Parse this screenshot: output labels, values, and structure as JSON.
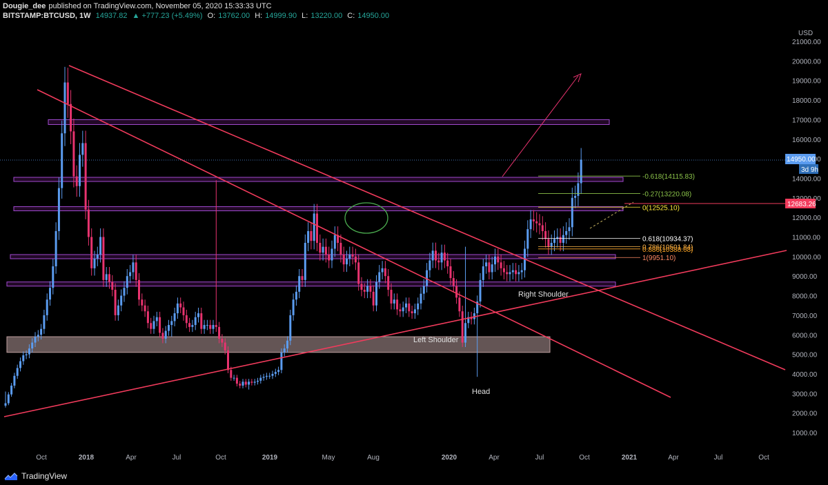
{
  "header": {
    "author": "Dougie_dee",
    "published": "published on TradingView.com, November 05, 2020 15:33:33 UTC",
    "symbol": "BITSTAMP:BTCUSD, 1W",
    "last": "14937.82",
    "change": "▲ +777.23 (+5.49%)",
    "o_label": "O:",
    "o_value": "13762.00",
    "h_label": "H:",
    "h_value": "14999.90",
    "l_label": "L:",
    "l_value": "13220.00",
    "c_label": "C:",
    "c_value": "14950.00"
  },
  "footer": {
    "brand": "TradingView"
  },
  "colors": {
    "bull": "#5b9cf0",
    "bear": "#e8336f",
    "trendline": "#f23b5c",
    "zone": "#9c27b0"
  },
  "chart_data": {
    "type": "candlestick",
    "currency": "USD",
    "y_ticks": [
      1000,
      2000,
      3000,
      4000,
      5000,
      6000,
      7000,
      8000,
      9000,
      10000,
      11000,
      12000,
      13000,
      14000,
      15000,
      16000,
      17000,
      18000,
      19000,
      20000,
      21000
    ],
    "x_ticks": [
      "Oct",
      "2018",
      "Apr",
      "Jul",
      "Oct",
      "2019",
      "May",
      "Aug",
      "2020",
      "Apr",
      "Jul",
      "Oct",
      "2021",
      "Apr",
      "Jul",
      "Oct"
    ],
    "price_label": "14950.00",
    "countdown_label": "3d 9h",
    "level_label": "12683.26",
    "fib_levels": [
      {
        "label": "-0.618(14115.83)",
        "value": 14115.83
      },
      {
        "label": "-0.27(13220.08)",
        "value": 13220.08
      },
      {
        "label": "0(12525.10)",
        "value": 12525.1
      },
      {
        "label": "0.618(10934.37)",
        "value": 10934.37
      },
      {
        "label": "0.786(10501.84)",
        "value": 10501.84
      },
      {
        "label": "0.886(10388.68)",
        "value": 10388.68
      },
      {
        "label": "1(9951.10)",
        "value": 9951.1
      }
    ],
    "annotations": [
      "Left Shoulder",
      "Head",
      "Right Shoulder"
    ],
    "zones": [
      [
        16750,
        17000
      ],
      [
        13850,
        14050
      ],
      [
        12380,
        12550
      ],
      [
        9950,
        10100
      ],
      [
        8550,
        8700
      ],
      [
        5100,
        5900
      ]
    ],
    "closes": [
      2500,
      2950,
      3400,
      3900,
      4300,
      4650,
      4950,
      5000,
      5300,
      5600,
      5900,
      6000,
      6300,
      7000,
      7800,
      8400,
      9500,
      11300,
      13500,
      16300,
      18900,
      17800,
      16400,
      14100,
      13600,
      15200,
      15800,
      12400,
      11000,
      9400,
      9900,
      10100,
      11000,
      8800,
      9100,
      8700,
      8300,
      7000,
      7500,
      8000,
      8400,
      9000,
      9200,
      9700,
      8800,
      7800,
      7500,
      7200,
      6600,
      6300,
      6700,
      6900,
      6100,
      5800,
      6200,
      6500,
      6700,
      7100,
      7600,
      7400,
      7000,
      6600,
      6400,
      6500,
      6900,
      7100,
      6300,
      6500,
      6500,
      6300,
      6500,
      6400,
      5800,
      5600,
      5200,
      4200,
      3800,
      3800,
      3500,
      3400,
      3600,
      3450,
      3600,
      3550,
      3600,
      3650,
      3800,
      3850,
      3900,
      3900,
      4000,
      4100,
      4200,
      5100,
      5300,
      5700,
      7000,
      7800,
      8200,
      9000,
      8800,
      10700,
      11300,
      10800,
      12200,
      10700,
      10200,
      10500,
      10100,
      9800,
      10400,
      11100,
      10700,
      10100,
      9600,
      9900,
      10100,
      10000,
      9700,
      8600,
      8300,
      8200,
      8500,
      8200,
      7500,
      8700,
      9200,
      9400,
      9000,
      8300,
      7600,
      7800,
      7300,
      7200,
      7400,
      7600,
      7200,
      7100,
      7300,
      7600,
      8100,
      8500,
      9300,
      9800,
      10300,
      9800,
      9700,
      10200,
      9800,
      9500,
      8900,
      8500,
      7900,
      7200,
      5600,
      6600,
      6900,
      6800,
      7100,
      7700,
      8800,
      9500,
      9700,
      9200,
      9600,
      10000,
      9700,
      9400,
      9200,
      9100,
      9200,
      9300,
      9100,
      9200,
      9300,
      10400,
      11400,
      11900,
      11800,
      11700,
      11600,
      11300,
      10900,
      10500,
      10700,
      10900,
      11000,
      10700,
      11100,
      11300,
      11500,
      13000,
      13100,
      13750,
      14950
    ],
    "notable_highs": {
      "0": 3100,
      "20": 19700,
      "71": 13900,
      "155": 10500,
      "199": 15000
    },
    "notable_lows": {
      "56": 5900,
      "82": 3200,
      "159": 3850
    }
  }
}
